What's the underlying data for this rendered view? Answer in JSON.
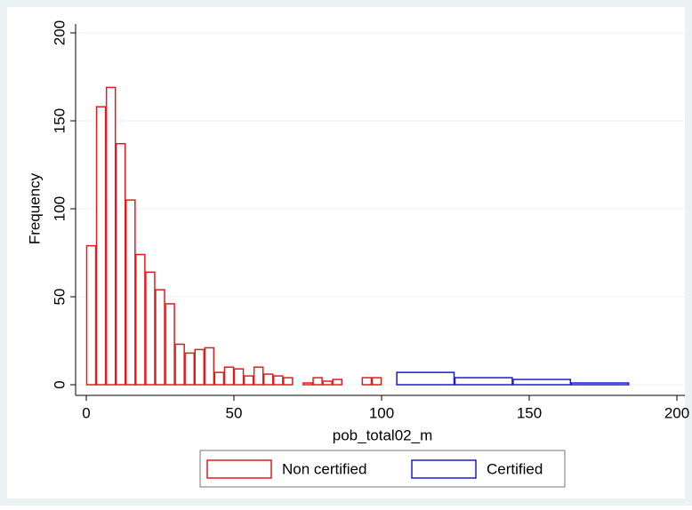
{
  "chart_data": {
    "type": "histogram",
    "x_label": "pob_total02_m",
    "y_label": "Frequency",
    "xlim": [
      0,
      200
    ],
    "ylim": [
      0,
      200
    ],
    "xticks": [
      0,
      50,
      100,
      150,
      200
    ],
    "yticks": [
      0,
      50,
      100,
      150,
      200
    ],
    "grid": true,
    "legend": "bottom",
    "series": [
      {
        "name": "Non certified",
        "color": "#e41a1c",
        "bins": [
          0,
          3.33,
          6.67,
          10,
          13.33,
          16.67,
          20,
          23.33,
          26.67,
          30,
          33.33,
          36.67,
          40,
          43.33,
          46.67,
          50,
          53.33,
          56.67,
          60,
          63.33,
          66.67,
          70,
          73.33,
          76.67,
          80,
          83.33,
          86.67,
          90,
          93.33,
          96.67,
          100
        ],
        "counts": [
          79,
          158,
          169,
          137,
          105,
          74,
          64,
          54,
          46,
          23,
          18,
          20,
          21,
          7,
          10,
          9,
          5,
          10,
          6,
          5,
          4,
          0,
          1,
          4,
          2,
          3,
          0,
          0,
          4,
          4
        ]
      },
      {
        "name": "Certified",
        "color": "#1a1ad2",
        "bins": [
          105,
          124.7,
          144.4,
          164.1,
          183.8
        ],
        "counts": [
          7,
          4,
          3,
          1
        ]
      }
    ]
  }
}
